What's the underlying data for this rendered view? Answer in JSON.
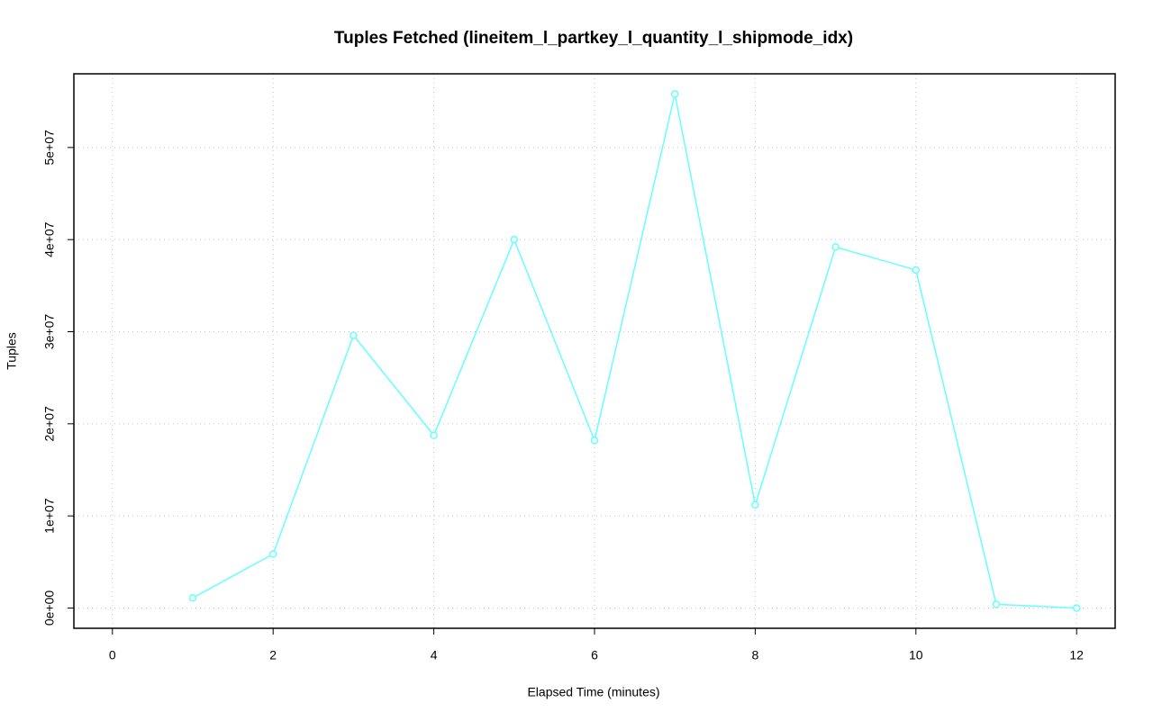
{
  "chart_data": {
    "type": "line",
    "title": "Tuples Fetched (lineitem_l_partkey_l_quantity_l_shipmode_idx)",
    "x_label": "Elapsed Time (minutes)",
    "y_label": "Tuples",
    "x": [
      1,
      2,
      3,
      4,
      5,
      6,
      7,
      8,
      9,
      10,
      11,
      12
    ],
    "values": [
      1100000,
      5860000,
      29600000,
      18750000,
      40000000,
      18200000,
      55800000,
      11200000,
      39200000,
      36700000,
      400000,
      0
    ],
    "color": "#66ffff",
    "xlim": [
      -0.48,
      12.48
    ],
    "xticks": [
      0,
      2,
      4,
      6,
      8,
      10,
      12
    ],
    "ylim": [
      -2200000,
      58000000
    ],
    "yticks": [
      {
        "value": 0,
        "label": "0e+00"
      },
      {
        "value": 10000000,
        "label": "1e+07"
      },
      {
        "value": 20000000,
        "label": "2e+07"
      },
      {
        "value": 30000000,
        "label": "3e+07"
      },
      {
        "value": 40000000,
        "label": "4e+07"
      },
      {
        "value": 50000000,
        "label": "5e+07"
      }
    ],
    "grid": true
  }
}
